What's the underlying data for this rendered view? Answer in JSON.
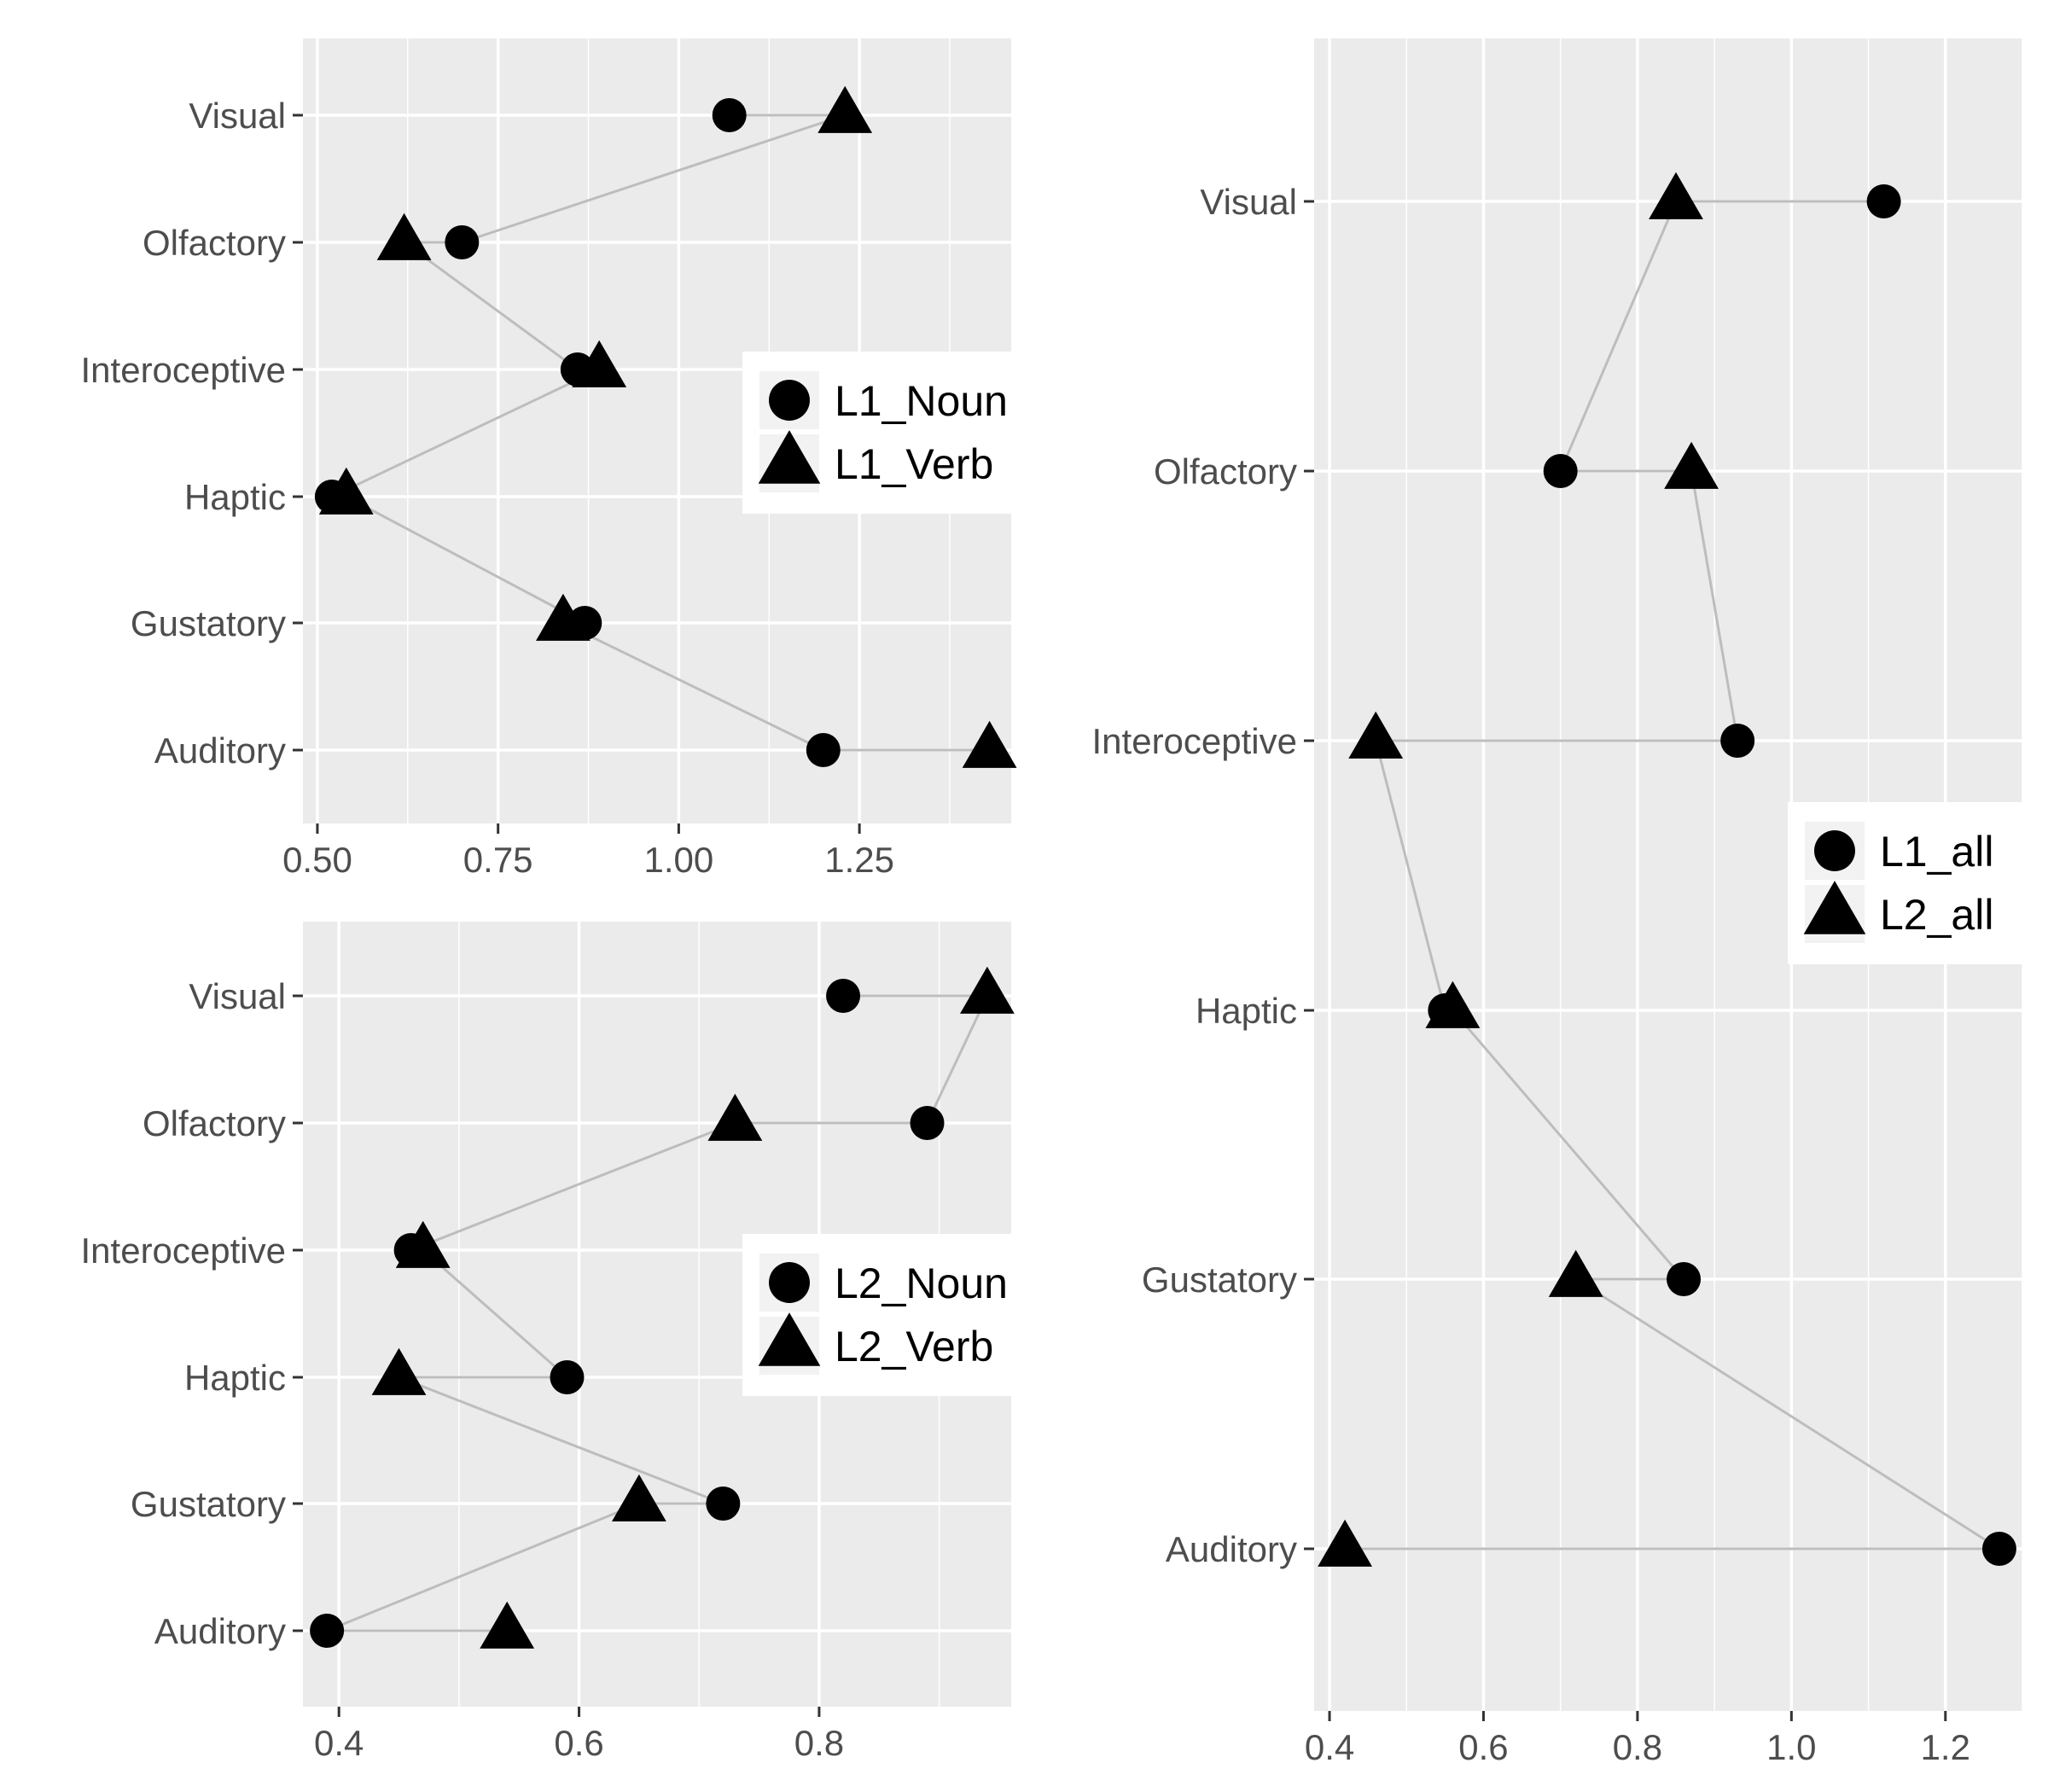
{
  "chart_data": [
    {
      "type": "scatter",
      "panel": "top-left",
      "categories": [
        "Visual",
        "Olfactory",
        "Interoceptive",
        "Haptic",
        "Gustatory",
        "Auditory"
      ],
      "series": [
        {
          "name": "L1_Noun",
          "marker": "circle",
          "values": [
            1.07,
            0.7,
            0.86,
            0.52,
            0.87,
            1.2
          ]
        },
        {
          "name": "L1_Verb",
          "marker": "triangle",
          "values": [
            1.23,
            0.62,
            0.89,
            0.54,
            0.84,
            1.43
          ]
        }
      ],
      "xlim": [
        0.48,
        1.46
      ],
      "xticks": [
        0.5,
        0.75,
        1.0,
        1.25
      ],
      "xtick_labels": [
        "0.50",
        "0.75",
        "1.00",
        "1.25"
      ],
      "grid": true,
      "legend": "right-center"
    },
    {
      "type": "scatter",
      "panel": "bottom-left",
      "categories": [
        "Visual",
        "Olfactory",
        "Interoceptive",
        "Haptic",
        "Gustatory",
        "Auditory"
      ],
      "series": [
        {
          "name": "L2_Noun",
          "marker": "circle",
          "values": [
            0.82,
            0.89,
            0.46,
            0.59,
            0.72,
            0.39
          ]
        },
        {
          "name": "L2_Verb",
          "marker": "triangle",
          "values": [
            0.94,
            0.73,
            0.47,
            0.45,
            0.65,
            0.54
          ]
        }
      ],
      "xlim": [
        0.37,
        0.96
      ],
      "xticks": [
        0.4,
        0.6,
        0.8
      ],
      "xtick_labels": [
        "0.4",
        "0.6",
        "0.8"
      ],
      "grid": true,
      "legend": "right-center"
    },
    {
      "type": "scatter",
      "panel": "right",
      "categories": [
        "Visual",
        "Olfactory",
        "Interoceptive",
        "Haptic",
        "Gustatory",
        "Auditory"
      ],
      "series": [
        {
          "name": "L1_all",
          "marker": "circle",
          "values": [
            1.12,
            0.7,
            0.93,
            0.55,
            0.86,
            1.27
          ]
        },
        {
          "name": "L2_all",
          "marker": "triangle",
          "values": [
            0.85,
            0.87,
            0.46,
            0.56,
            0.72,
            0.42
          ]
        }
      ],
      "xlim": [
        0.38,
        1.3
      ],
      "xticks": [
        0.4,
        0.6,
        0.8,
        1.0,
        1.2
      ],
      "xtick_labels": [
        "0.4",
        "0.6",
        "0.8",
        "1.0",
        "1.2"
      ],
      "grid": true,
      "legend": "right-center"
    }
  ],
  "colors": {
    "panel_background": "#ebebeb",
    "grid_major": "#ffffff",
    "connector": "#bdbdbd",
    "marker": "#000000",
    "tick_text": "#4d4d4d"
  }
}
